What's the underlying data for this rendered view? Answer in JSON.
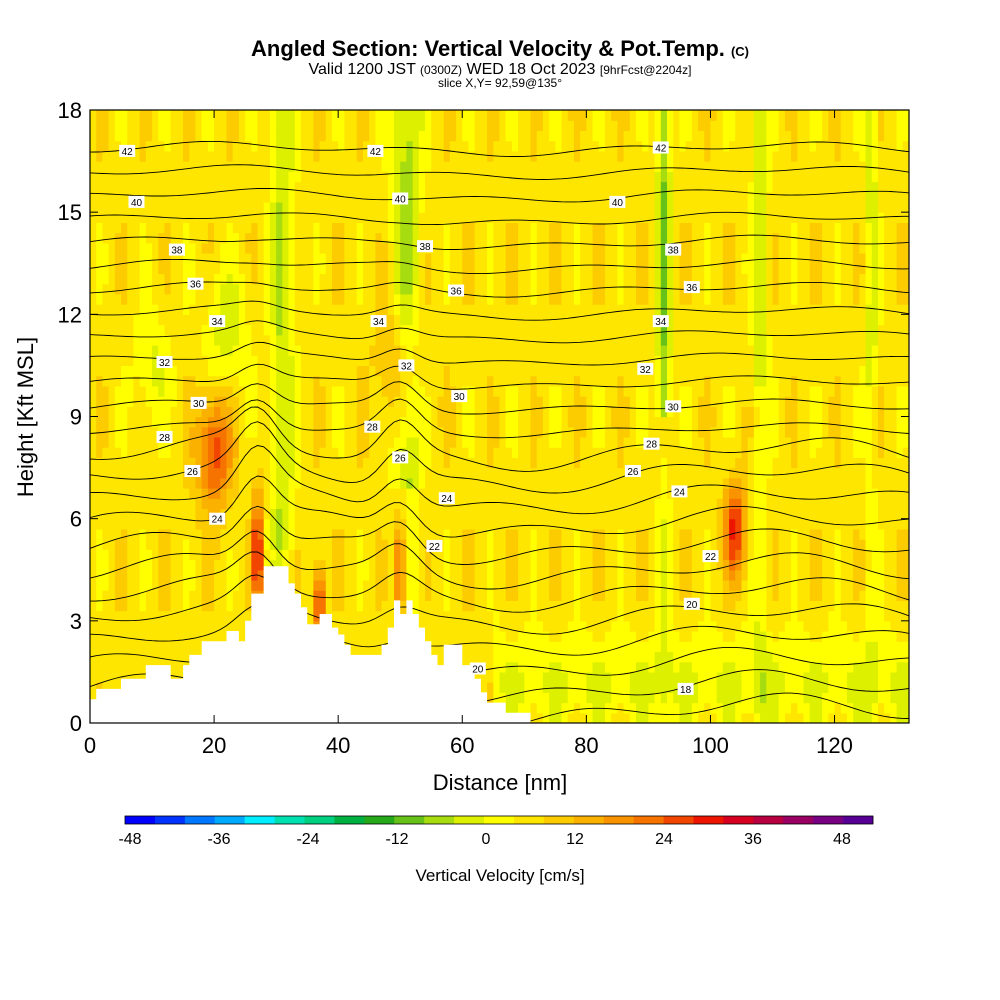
{
  "header": {
    "title": "Angled Section: Vertical Velocity & Pot.Temp.",
    "title_mark": "(C)",
    "valid_a": "Valid 1200 JST",
    "valid_b": "(0300Z)",
    "valid_c": "WED 18 Oct 2023",
    "valid_d": "[9hrFcst@2204z]",
    "slice": "slice X,Y= 92,59@135°"
  },
  "chart_data": {
    "type": "heatmap",
    "xlabel": "Distance [nm]",
    "ylabel": "Height [Kft MSL]",
    "xlim": [
      0,
      132
    ],
    "ylim": [
      0,
      18
    ],
    "x_ticks": [
      0,
      20,
      40,
      60,
      80,
      100,
      120
    ],
    "y_ticks": [
      0,
      3,
      6,
      9,
      12,
      15,
      18
    ],
    "colorbar": {
      "label": "Vertical Velocity [cm/s]",
      "range": [
        -48,
        48
      ],
      "ticks": [
        -48,
        -36,
        -24,
        -12,
        0,
        12,
        24,
        36,
        48
      ],
      "colors": [
        "#0000ff",
        "#0033ff",
        "#0077ff",
        "#00aaff",
        "#00eeff",
        "#00e0b0",
        "#00d080",
        "#00b040",
        "#25a81a",
        "#66c218",
        "#a6dc10",
        "#ddf000",
        "#ffff00",
        "#fee600",
        "#fccc00",
        "#fbb100",
        "#f99400",
        "#f67300",
        "#f24500",
        "#ee1500",
        "#d80020",
        "#b80040",
        "#980062",
        "#780082",
        "#580096"
      ]
    },
    "theta_contours": {
      "units": "C",
      "levels": [
        18,
        20,
        22,
        24,
        26,
        28,
        30,
        32,
        34,
        36,
        38,
        40,
        42
      ],
      "labels": [
        {
          "text": "42",
          "x": 6,
          "y": 16.8
        },
        {
          "text": "42",
          "x": 46,
          "y": 16.8
        },
        {
          "text": "42",
          "x": 92,
          "y": 16.9
        },
        {
          "text": "40",
          "x": 7.5,
          "y": 15.3
        },
        {
          "text": "40",
          "x": 50,
          "y": 15.4
        },
        {
          "text": "40",
          "x": 85,
          "y": 15.3
        },
        {
          "text": "38",
          "x": 14,
          "y": 13.9
        },
        {
          "text": "38",
          "x": 54,
          "y": 14.0
        },
        {
          "text": "38",
          "x": 94,
          "y": 13.9
        },
        {
          "text": "36",
          "x": 17,
          "y": 12.9
        },
        {
          "text": "36",
          "x": 59,
          "y": 12.7
        },
        {
          "text": "36",
          "x": 97,
          "y": 12.8
        },
        {
          "text": "34",
          "x": 20.5,
          "y": 11.8
        },
        {
          "text": "34",
          "x": 46.5,
          "y": 11.8
        },
        {
          "text": "34",
          "x": 92,
          "y": 11.8
        },
        {
          "text": "32",
          "x": 12,
          "y": 10.6
        },
        {
          "text": "32",
          "x": 51,
          "y": 10.5
        },
        {
          "text": "32",
          "x": 89.5,
          "y": 10.4
        },
        {
          "text": "30",
          "x": 17.5,
          "y": 9.4
        },
        {
          "text": "30",
          "x": 59.5,
          "y": 9.6
        },
        {
          "text": "30",
          "x": 94,
          "y": 9.3
        },
        {
          "text": "28",
          "x": 12,
          "y": 8.4
        },
        {
          "text": "28",
          "x": 45.5,
          "y": 8.7
        },
        {
          "text": "28",
          "x": 90.5,
          "y": 8.2
        },
        {
          "text": "26",
          "x": 16.5,
          "y": 7.4
        },
        {
          "text": "26",
          "x": 50,
          "y": 7.8
        },
        {
          "text": "26",
          "x": 87.5,
          "y": 7.4
        },
        {
          "text": "24",
          "x": 20.5,
          "y": 6.0
        },
        {
          "text": "24",
          "x": 57.5,
          "y": 6.6
        },
        {
          "text": "24",
          "x": 95,
          "y": 6.8
        },
        {
          "text": "22",
          "x": 55.5,
          "y": 5.2
        },
        {
          "text": "22",
          "x": 100,
          "y": 4.9
        },
        {
          "text": "20",
          "x": 62.5,
          "y": 1.6
        },
        {
          "text": "20",
          "x": 97,
          "y": 3.5
        },
        {
          "text": "18",
          "x": 96,
          "y": 1.0
        }
      ]
    }
  }
}
